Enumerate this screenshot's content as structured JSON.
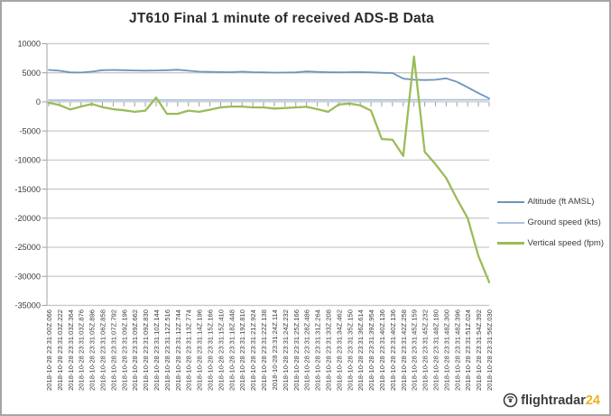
{
  "chart_data": {
    "type": "line",
    "title": "JT610 Final 1 minute of received ADS-B Data",
    "xlabel": "",
    "ylabel": "",
    "ylim": [
      -35000,
      10000
    ],
    "yticks": [
      10000,
      5000,
      0,
      -5000,
      -10000,
      -15000,
      -20000,
      -25000,
      -30000,
      -35000
    ],
    "grid": true,
    "legend_position": "right",
    "x_tick_label_rotation": 90,
    "categories": [
      "2018-10-28 23:31:00Z.066",
      "2018-10-28 23:31:03Z.222",
      "2018-10-28 23:31:03Z.364",
      "2018-10-28 23:31:03Z.876",
      "2018-10-28 23:31:05Z.896",
      "2018-10-28 23:31:06Z.858",
      "2018-10-28 23:31:07Z.792",
      "2018-10-28 23:31:09Z.196",
      "2018-10-28 23:31:09Z.662",
      "2018-10-28 23:31:09Z.830",
      "2018-10-28 23:31:10Z.144",
      "2018-10-28 23:31:12Z.516",
      "2018-10-28 23:31:12Z.744",
      "2018-10-28 23:31:13Z.774",
      "2018-10-28 23:31:14Z.196",
      "2018-10-28 23:31:15Z.166",
      "2018-10-28 23:31:15Z.410",
      "2018-10-28 23:31:18Z.448",
      "2018-10-28 23:31:19Z.810",
      "2018-10-28 23:31:21Z.924",
      "2018-10-28 23:31:22Z.138",
      "2018-10-28 23:31:24Z.114",
      "2018-10-28 23:31:24Z.232",
      "2018-10-28 23:31:25Z.166",
      "2018-10-28 23:31:28Z.486",
      "2018-10-28 23:31:31Z.264",
      "2018-10-28 23:31:33Z.208",
      "2018-10-28 23:31:34Z.462",
      "2018-10-28 23:31:35Z.150",
      "2018-10-28 23:31:36Z.614",
      "2018-10-28 23:31:39Z.954",
      "2018-10-28 23:31:40Z.136",
      "2018-10-28 23:31:40Z.136",
      "2018-10-28 23:31:42Z.258",
      "2018-10-28 23:31:45Z.159",
      "2018-10-28 23:31:45Z.232",
      "2018-10-28 23:31:48Z.180",
      "2018-10-28 23:31:48Z.300",
      "2018-10-28 23:31:48Z.396",
      "2018-10-28 23:31:51Z.024",
      "2018-10-28 23:31:54Z.392",
      "2018-10-28 23:31:56Z.030"
    ],
    "series": [
      {
        "name": "Altitude (ft AMSL)",
        "color": "#6e92bd",
        "values": [
          5500,
          5350,
          5075,
          5050,
          5200,
          5450,
          5500,
          5450,
          5400,
          5375,
          5400,
          5450,
          5525,
          5350,
          5200,
          5150,
          5125,
          5100,
          5200,
          5100,
          5075,
          5025,
          5050,
          5075,
          5250,
          5150,
          5100,
          5075,
          5100,
          5125,
          5075,
          5000,
          4950,
          4000,
          3800,
          3750,
          3800,
          4050,
          3450,
          2500,
          1500,
          600
        ]
      },
      {
        "name": "Ground speed (kts)",
        "color": "#a6c3de",
        "values": [
          297,
          299,
          300,
          302,
          303,
          305,
          306,
          307,
          308,
          309,
          310,
          311,
          312,
          312,
          313,
          314,
          315,
          315,
          316,
          317,
          318,
          319,
          320,
          321,
          322,
          323,
          324,
          325,
          326,
          327,
          328,
          330,
          332,
          335,
          340,
          344,
          348,
          352,
          356,
          358,
          360,
          361
        ]
      },
      {
        "name": "Vertical speed (fpm)",
        "color": "#9bbb59",
        "values": [
          -150,
          -550,
          -1300,
          -800,
          -350,
          -900,
          -1250,
          -1450,
          -1700,
          -1500,
          750,
          -2050,
          -2050,
          -1500,
          -1700,
          -1350,
          -950,
          -800,
          -800,
          -950,
          -950,
          -1150,
          -1050,
          -950,
          -850,
          -1250,
          -1700,
          -450,
          -300,
          -600,
          -1500,
          -6400,
          -6500,
          -9300,
          7800,
          -8600,
          -10700,
          -13100,
          -16700,
          -20000,
          -26500,
          -31000
        ]
      }
    ]
  },
  "colors": {
    "grid": "#c9c9c9",
    "axis": "#b0b0b0",
    "tick": "#9b9b9b",
    "tick_label": "#3c3c3c",
    "title": "#2b2b2b",
    "logo_suffix": "#f2af1d",
    "logo_main": "#3d3d3d"
  },
  "branding": {
    "logo_text": "flightradar",
    "logo_suffix": "24"
  }
}
